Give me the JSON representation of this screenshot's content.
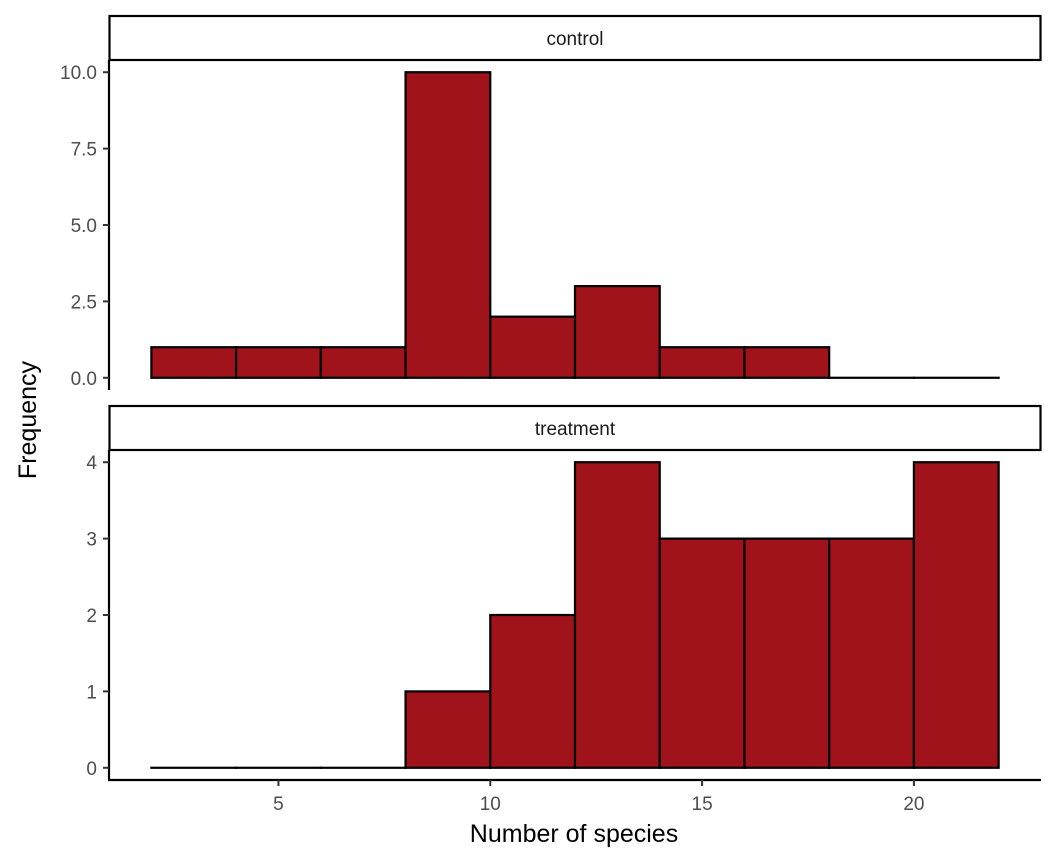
{
  "chart_data": {
    "type": "bar",
    "subtype": "faceted-histogram",
    "xlabel": "Number of species",
    "ylabel": "Frequency",
    "xlim": [
      1,
      23
    ],
    "x_ticks": [
      5,
      10,
      15,
      20
    ],
    "bin_edges": [
      2,
      4,
      6,
      8,
      10,
      12,
      14,
      16,
      18,
      20,
      22
    ],
    "bar_color": "#A0131B",
    "bar_outline": "#000000",
    "grid": false,
    "panels": [
      {
        "name": "control",
        "ylim": [
          -0.4,
          10.4
        ],
        "y_ticks": [
          0.0,
          2.5,
          5.0,
          7.5,
          10.0
        ],
        "y_tick_labels": [
          "0.0",
          "2.5",
          "5.0",
          "7.5",
          "10.0"
        ],
        "counts": [
          1,
          1,
          1,
          10,
          2,
          3,
          1,
          1,
          0,
          0
        ]
      },
      {
        "name": "treatment",
        "ylim": [
          -0.16,
          4.16
        ],
        "y_ticks": [
          0,
          1,
          2,
          3,
          4
        ],
        "y_tick_labels": [
          "0",
          "1",
          "2",
          "3",
          "4"
        ],
        "counts": [
          0,
          0,
          0,
          1,
          2,
          4,
          3,
          3,
          3,
          4
        ]
      }
    ]
  }
}
